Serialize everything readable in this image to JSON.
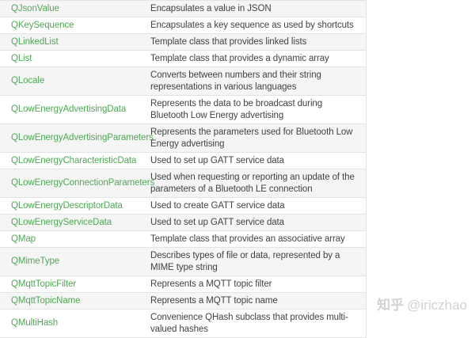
{
  "colors": {
    "link_green": "#4fa855",
    "row_stripe": "#f5f5f5",
    "row_border": "#e3e3e3",
    "body_text": "#404244",
    "watermark_gray": "#d2d2d2"
  },
  "table": {
    "columns": [
      "class_name",
      "description"
    ],
    "rows": [
      {
        "name": "QJsonValue",
        "description": "Encapsulates a value in JSON"
      },
      {
        "name": "QKeySequence",
        "description": "Encapsulates a key sequence as used by shortcuts"
      },
      {
        "name": "QLinkedList",
        "description": "Template class that provides linked lists"
      },
      {
        "name": "QList",
        "description": "Template class that provides a dynamic array"
      },
      {
        "name": "QLocale",
        "description": "Converts between numbers and their string representations in various languages"
      },
      {
        "name": "QLowEnergyAdvertisingData",
        "description": "Represents the data to be broadcast during Bluetooth Low Energy advertising"
      },
      {
        "name": "QLowEnergyAdvertisingParameters",
        "description": "Represents the parameters used for Bluetooth Low Energy advertising"
      },
      {
        "name": "QLowEnergyCharacteristicData",
        "description": "Used to set up GATT service data"
      },
      {
        "name": "QLowEnergyConnectionParameters",
        "description": "Used when requesting or reporting an update of the parameters of a Bluetooth LE connection"
      },
      {
        "name": "QLowEnergyDescriptorData",
        "description": "Used to create GATT service data"
      },
      {
        "name": "QLowEnergyServiceData",
        "description": "Used to set up GATT service data"
      },
      {
        "name": "QMap",
        "description": "Template class that provides an associative array"
      },
      {
        "name": "QMimeType",
        "description": "Describes types of file or data, represented by a MIME type string"
      },
      {
        "name": "QMqttTopicFilter",
        "description": "Represents a MQTT topic filter"
      },
      {
        "name": "QMqttTopicName",
        "description": "Represents a MQTT topic name"
      },
      {
        "name": "QMultiHash",
        "description": "Convenience QHash subclass that provides multi-valued hashes"
      }
    ]
  },
  "watermark": {
    "brand": "知乎",
    "handle": "@iriczhao"
  }
}
